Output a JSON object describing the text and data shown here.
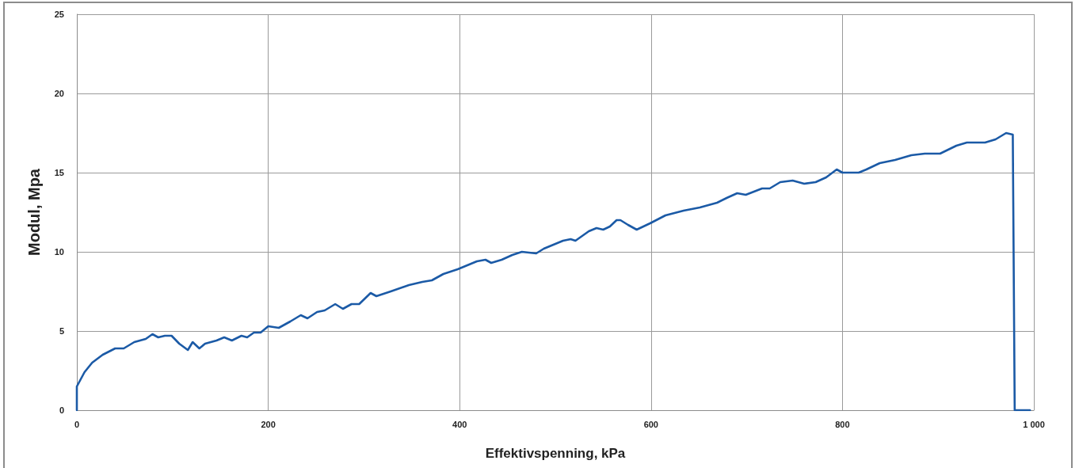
{
  "chart_data": {
    "type": "line",
    "xlabel": "Effektivspenning, kPa",
    "ylabel": "Modul, Mpa",
    "xlim": [
      0,
      1000
    ],
    "xticks": [
      0,
      200,
      400,
      600,
      800,
      {
        "value": 1000,
        "label": "1 000"
      }
    ],
    "ylim": [
      0,
      25
    ],
    "yticks": [
      0,
      5,
      10,
      15,
      20,
      25
    ],
    "grid": true,
    "marker": "none",
    "line_style": "solid",
    "series": [
      {
        "color": "#1b5aa6",
        "x": [
          0,
          0,
          8,
          16,
          27,
          40,
          49,
          60,
          72,
          79,
          85,
          92,
          99,
          107,
          116,
          121,
          128,
          134,
          146,
          154,
          162,
          172,
          178,
          185,
          192,
          200,
          211,
          223,
          234,
          241,
          251,
          259,
          270,
          278,
          287,
          295,
          307,
          313,
          328,
          347,
          361,
          371,
          383,
          398,
          418,
          427,
          433,
          444,
          455,
          465,
          480,
          488,
          508,
          516,
          521,
          535,
          543,
          550,
          557,
          564,
          568,
          576,
          585,
          599,
          615,
          634,
          651,
          669,
          679,
          690,
          699,
          716,
          724,
          735,
          748,
          760,
          772,
          783,
          794,
          800,
          817,
          825,
          839,
          855,
          872,
          886,
          902,
          919,
          930,
          949,
          960,
          971,
          978,
          980,
          996
        ],
        "values": [
          0,
          1.5,
          2.4,
          3.0,
          3.5,
          3.9,
          3.9,
          4.3,
          4.5,
          4.8,
          4.6,
          4.7,
          4.7,
          4.2,
          3.8,
          4.3,
          3.9,
          4.2,
          4.4,
          4.6,
          4.4,
          4.7,
          4.6,
          4.9,
          4.9,
          5.3,
          5.2,
          5.6,
          6.0,
          5.8,
          6.2,
          6.3,
          6.7,
          6.4,
          6.7,
          6.7,
          7.4,
          7.2,
          7.5,
          7.9,
          8.1,
          8.2,
          8.6,
          8.9,
          9.4,
          9.5,
          9.3,
          9.5,
          9.8,
          10.0,
          9.9,
          10.2,
          10.7,
          10.8,
          10.7,
          11.3,
          11.5,
          11.4,
          11.6,
          12.0,
          12.0,
          11.7,
          11.4,
          11.8,
          12.3,
          12.6,
          12.8,
          13.1,
          13.4,
          13.7,
          13.6,
          14.0,
          14.0,
          14.4,
          14.5,
          14.3,
          14.4,
          14.7,
          15.2,
          15.0,
          15.0,
          15.2,
          15.6,
          15.8,
          16.1,
          16.2,
          16.2,
          16.7,
          16.9,
          16.9,
          17.1,
          17.5,
          17.4,
          0,
          0
        ]
      }
    ]
  }
}
